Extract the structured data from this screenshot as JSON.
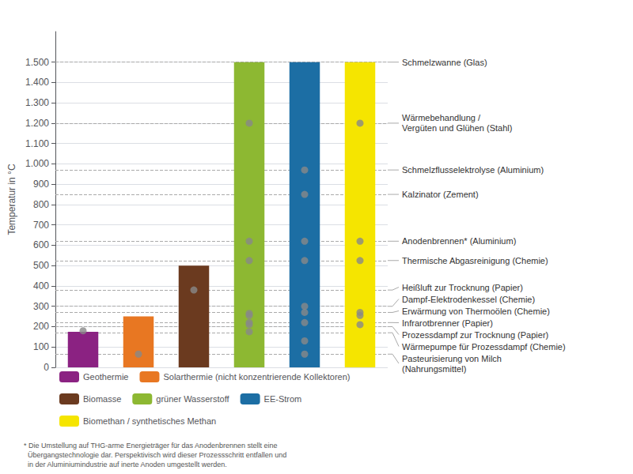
{
  "chart_data": {
    "type": "bar",
    "categories": [
      "Geothermie",
      "Solarthermie (nicht konzentrierende Kollektoren)",
      "Biomasse",
      "grüner Wasserstoff",
      "EE-Strom",
      "Biomethan / synthetisches Methan"
    ],
    "series": [
      {
        "type": "bar",
        "values": [
          175,
          250,
          500,
          1500,
          1500,
          1500
        ],
        "colors": [
          "#8B2282",
          "#E87722",
          "#6B3A1F",
          "#8DB832",
          "#1C6EA4",
          "#F5E500"
        ]
      },
      {
        "type": "scatter",
        "color": "#888888",
        "x": [
          "Geothermie",
          "Solarthermie (nicht konzentrierende Kollektoren)",
          "Biomasse",
          "grüner Wasserstoff",
          "grüner Wasserstoff",
          "grüner Wasserstoff",
          "grüner Wasserstoff",
          "grüner Wasserstoff",
          "grüner Wasserstoff",
          "grüner Wasserstoff",
          "grüner Wasserstoff",
          "EE-Strom",
          "EE-Strom",
          "EE-Strom",
          "EE-Strom",
          "EE-Strom",
          "EE-Strom",
          "EE-Strom",
          "EE-Strom",
          "EE-Strom",
          "Biomethan / synthetisches Methan",
          "Biomethan / synthetisches Methan",
          "Biomethan / synthetisches Methan",
          "Biomethan / synthetisches Methan",
          "Biomethan / synthetisches Methan",
          "Biomethan / synthetisches Methan"
        ],
        "values": [
          180,
          65,
          380,
          1200,
          620,
          525,
          265,
          255,
          220,
          210,
          175,
          970,
          850,
          620,
          525,
          300,
          270,
          220,
          130,
          65,
          1200,
          620,
          525,
          270,
          255,
          210
        ]
      }
    ],
    "ylabel": "Temperatur in °C",
    "ylim": [
      0,
      1650
    ],
    "yticks": [
      0,
      100,
      200,
      300,
      400,
      500,
      600,
      700,
      800,
      900,
      {
        "value": 1000,
        "label": "1.000"
      },
      {
        "value": 1100,
        "label": "1.100"
      },
      {
        "value": 1200,
        "label": "1.200"
      },
      {
        "value": 1300,
        "label": "1.300"
      },
      {
        "value": 1400,
        "label": "1.400"
      },
      {
        "value": 1500,
        "label": "1.500"
      }
    ],
    "grid": true,
    "legend": "bottom",
    "tick_labels": "y",
    "annotations": [
      {
        "y": 1500,
        "label": "Schmelzwanne (Glas)"
      },
      {
        "y": 1200,
        "label": "Wärmebehandlung /\nVergüten und Glühen (Stahl)"
      },
      {
        "y": 970,
        "label": "Schmelzflusselektrolyse (Aluminium)"
      },
      {
        "y": 850,
        "label": "Kalzinator (Zement)"
      },
      {
        "y": 620,
        "label": "Anodenbrennen* (Aluminium)"
      },
      {
        "y": 525,
        "label": "Thermische Abgasreinigung (Chemie)"
      },
      {
        "y": 380,
        "label": "Heißluft zur Trocknung (Papier)"
      },
      {
        "y": 300,
        "label": "Dampf-Elektrodenkessel (Chemie)"
      },
      {
        "y": 270,
        "label": "Erwärmung von Thermoölen (Chemie)"
      },
      {
        "y": 220,
        "label": "Infrarotbrenner (Papier)"
      },
      {
        "y": 200,
        "label": "Prozessdampf zur Trocknung (Papier)"
      },
      {
        "y": 170,
        "label": "Wärmepumpe für Prozessdampf (Chemie)"
      },
      {
        "y": 65,
        "label": "Pasteurisierung von Milch\n(Nahrungsmittel)"
      }
    ],
    "footnote": "* Die Umstellung auf THG-arme Energieträger für das Anodenbrennen stellt eine\n  Übergangstechnologie dar. Perspektivisch wird dieser Prozessschritt entfallen und\n  in der Aluminiumindustrie auf inerte Anoden umgestellt werden."
  }
}
